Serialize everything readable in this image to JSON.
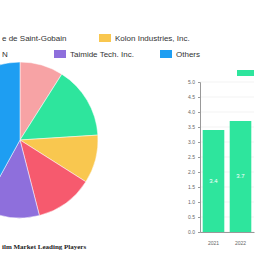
{
  "chart_data": [
    {
      "type": "pie",
      "title": "ilm Market Leading Players",
      "categories": [
        null,
        "e de Saint-Gobain",
        "Kolon Industries, Inc.",
        "N",
        "Taimide Tech. Inc.",
        "Others"
      ],
      "values": [
        9,
        15,
        10,
        12,
        12,
        42
      ],
      "colors": [
        "#f7a3a5",
        "#2ee59d",
        "#f9c74f",
        "#f65a6e",
        "#8e6fdc",
        "#1e9ef2"
      ],
      "legend": "top"
    },
    {
      "type": "bar",
      "categories": [
        "2021",
        "2022"
      ],
      "values": [
        3.4,
        3.7
      ],
      "color": "#2ee59d",
      "ylim": [
        0,
        5
      ],
      "yticks": [
        {
          "value": 0,
          "label": "0.0"
        },
        {
          "value": 0.5,
          "label": "0.5"
        },
        {
          "value": 1,
          "label": "1.0"
        },
        {
          "value": 1.5,
          "label": "1.5"
        },
        {
          "value": 2,
          "label": "2.0"
        },
        {
          "value": 2.5,
          "label": "2.5"
        },
        {
          "value": 3,
          "label": "3.0"
        },
        {
          "value": 3.5,
          "label": "3.5"
        },
        {
          "value": 4,
          "label": "4.0"
        },
        {
          "value": 4.5,
          "label": "4.5"
        },
        {
          "value": 5,
          "label": "5.0"
        }
      ],
      "grid": true,
      "data_labels": true
    }
  ]
}
